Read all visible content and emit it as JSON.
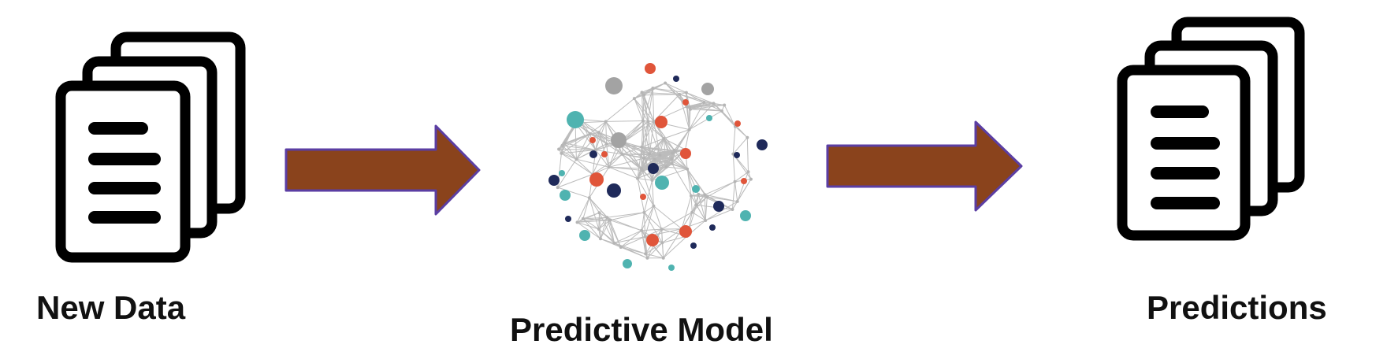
{
  "labels": {
    "input": "New Data",
    "model": "Predictive Model",
    "output": "Predictions"
  },
  "colors": {
    "arrow_fill": "#8a431c",
    "arrow_stroke": "#5b3ea3",
    "document_stroke": "#000000",
    "node_red": "#e0553a",
    "node_teal": "#4fb3b0",
    "node_navy": "#1f2a5a",
    "node_gray": "#a3a3a3",
    "edge": "#bcbcbc"
  },
  "icons": {
    "input": "document-stack-icon",
    "model": "neural-network-icon",
    "output": "document-stack-icon",
    "connector": "right-arrow-icon"
  }
}
